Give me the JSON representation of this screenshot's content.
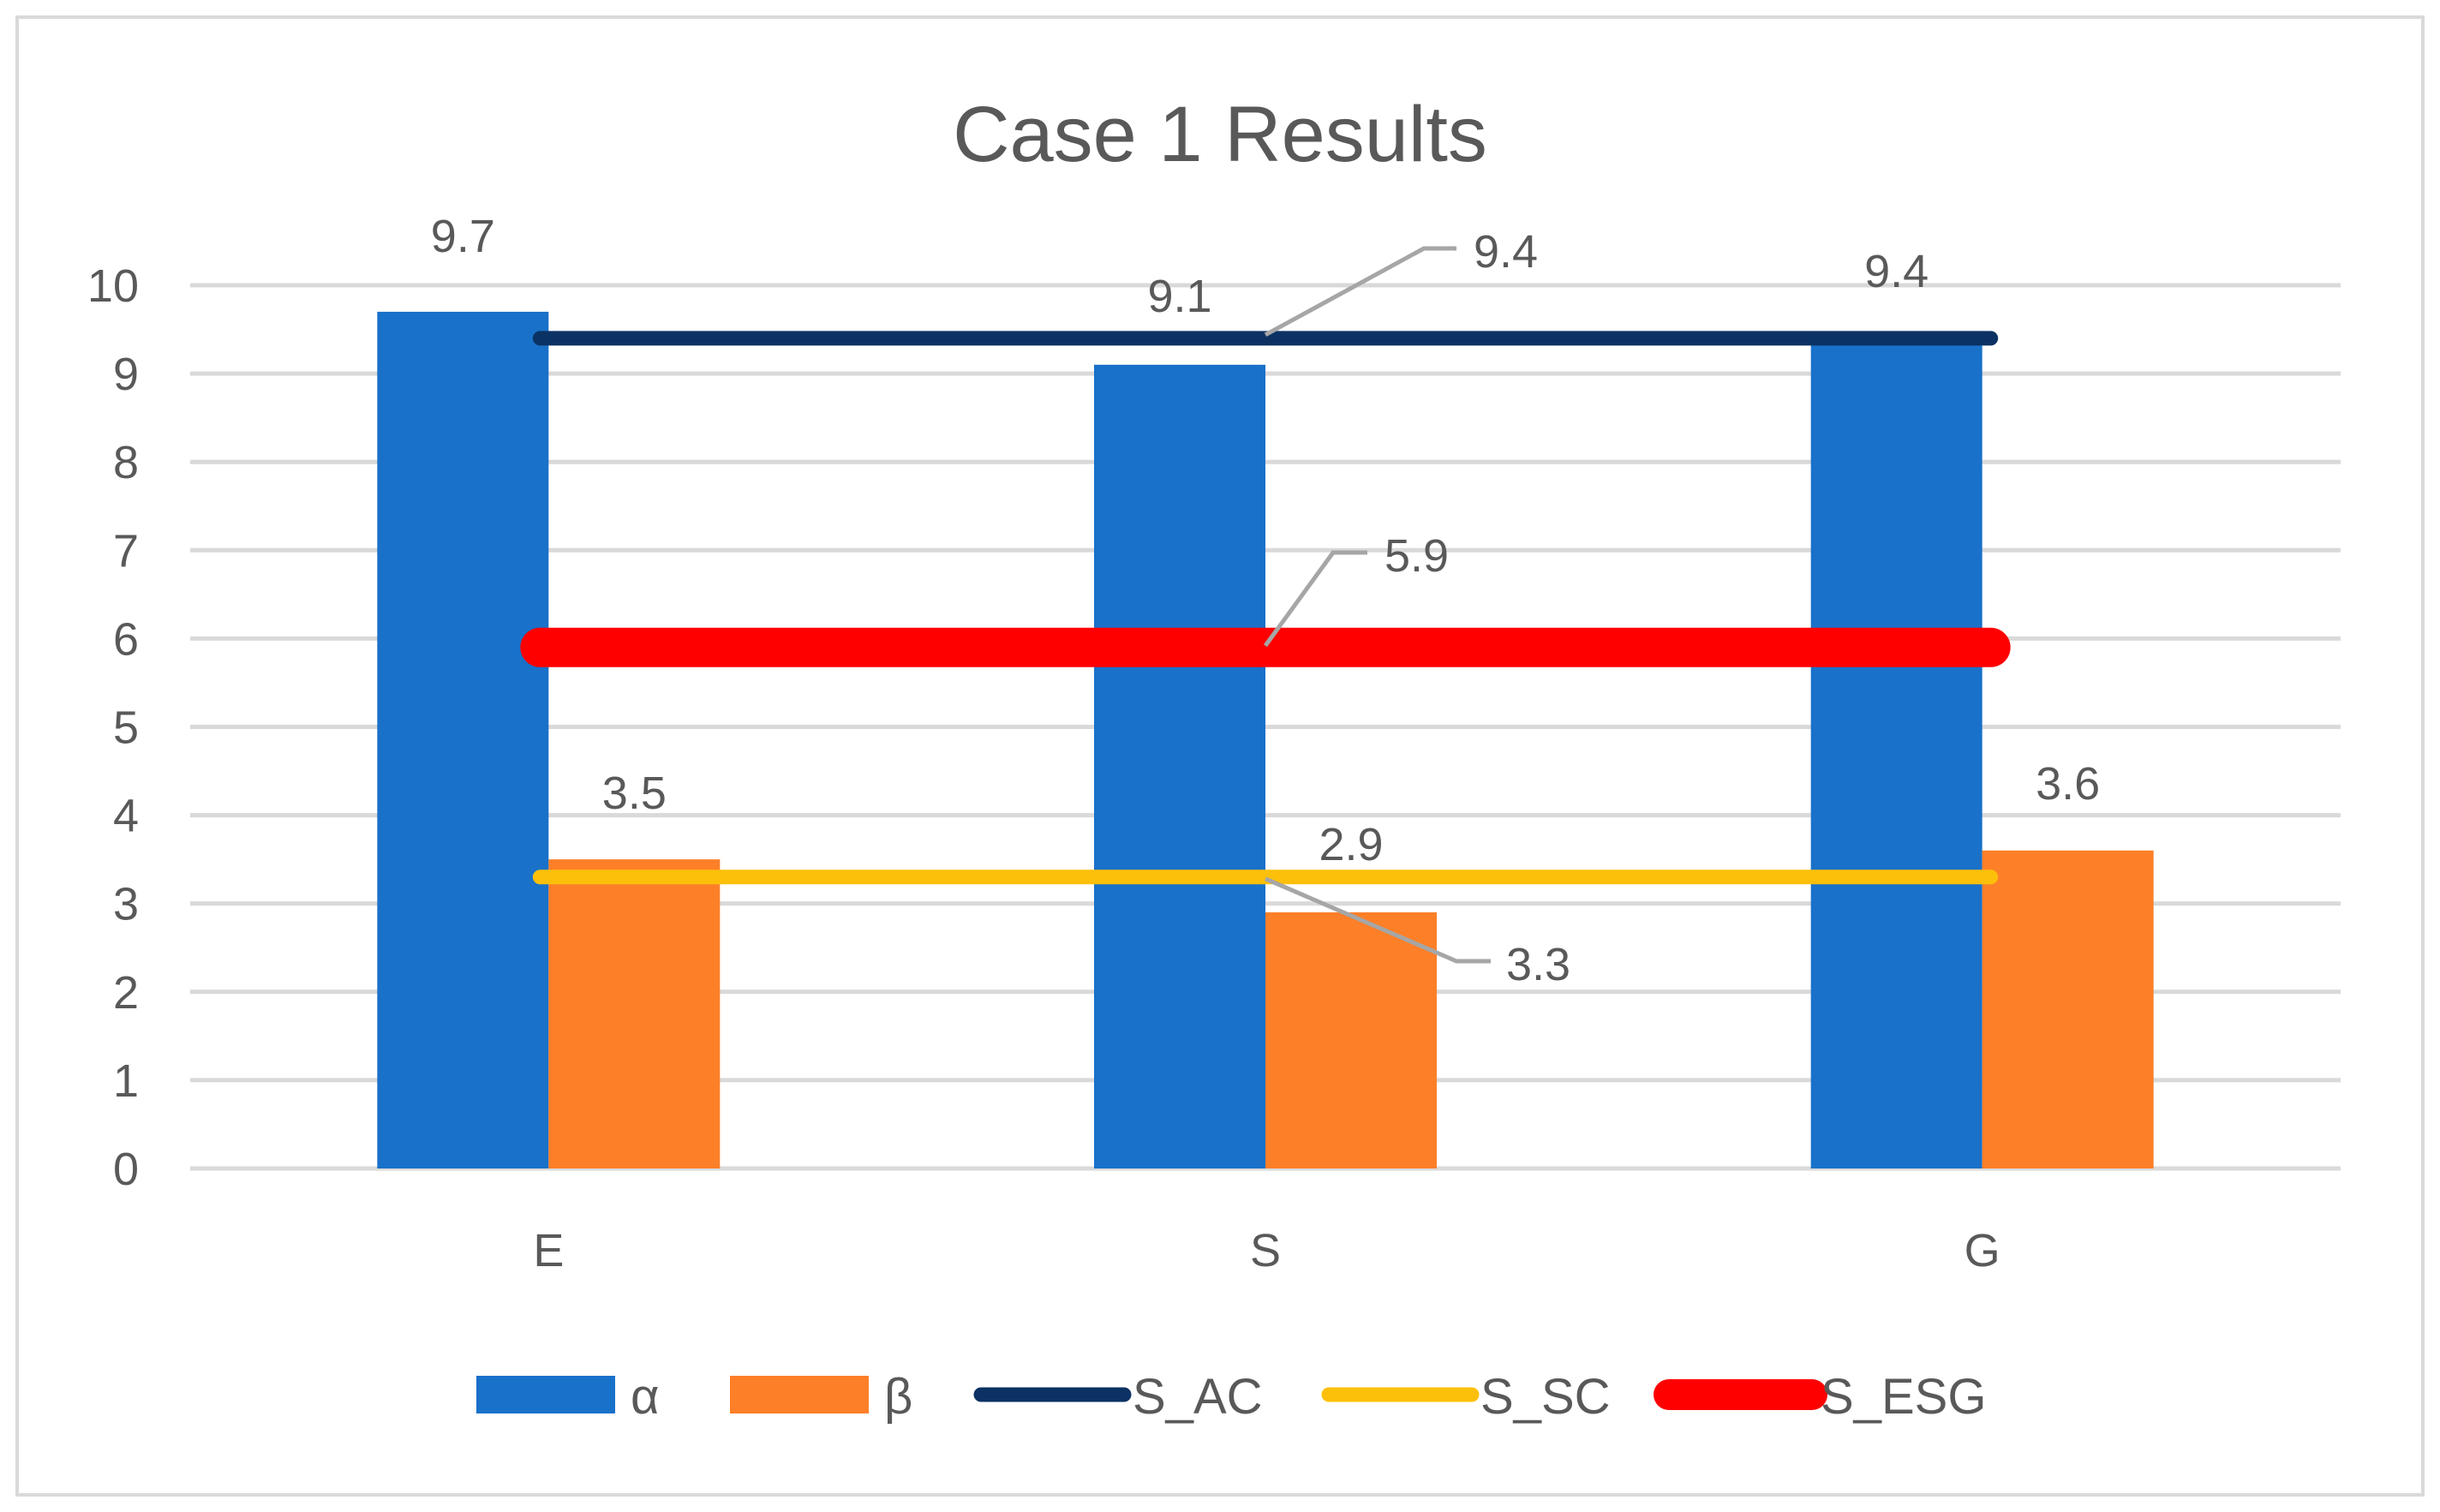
{
  "chart_data": {
    "type": "bar",
    "title": "Case 1 Results",
    "categories": [
      "E",
      "S",
      "G"
    ],
    "ylim": [
      0,
      10
    ],
    "yticks": [
      "0",
      "1",
      "2",
      "3",
      "4",
      "5",
      "6",
      "7",
      "8",
      "9",
      "10"
    ],
    "grid": true,
    "legend_position": "bottom",
    "series": [
      {
        "name": "α",
        "kind": "bar",
        "color": "#1971c9",
        "values": [
          9.7,
          9.1,
          9.4
        ],
        "labels": [
          "9.7",
          "9.1",
          "9.4"
        ]
      },
      {
        "name": "β",
        "kind": "bar",
        "color": "#fd7f28",
        "values": [
          3.5,
          2.9,
          3.6
        ],
        "labels": [
          "3.5",
          "2.9",
          "3.6"
        ]
      }
    ],
    "reference_lines": [
      {
        "name": "S_AC",
        "value": 9.4,
        "label": "9.4",
        "color": "#0b3263",
        "weight": "thin"
      },
      {
        "name": "S_SC",
        "value": 3.3,
        "label": "3.3",
        "color": "#fcc00a",
        "weight": "thin"
      },
      {
        "name": "S_ESG",
        "value": 5.9,
        "label": "5.9",
        "color": "#fe0000",
        "weight": "thick"
      }
    ]
  }
}
